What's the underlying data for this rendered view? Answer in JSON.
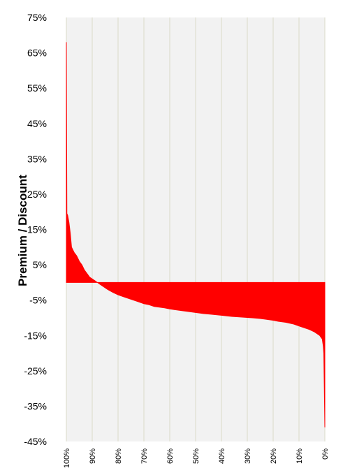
{
  "chart_data": {
    "type": "area",
    "title": "",
    "xlabel": "",
    "ylabel": "Premium / Discount",
    "x_reversed": true,
    "xlim": [
      100,
      0
    ],
    "ylim": [
      -45,
      75
    ],
    "grid": true,
    "legend": "none",
    "x_ticks": [
      "100%",
      "90%",
      "80%",
      "70%",
      "60%",
      "50%",
      "40%",
      "30%",
      "20%",
      "10%",
      "0%"
    ],
    "y_ticks": [
      "75%",
      "65%",
      "55%",
      "45%",
      "35%",
      "25%",
      "15%",
      "5%",
      "-5%",
      "-15%",
      "-25%",
      "-35%",
      "-45%"
    ],
    "series": [
      {
        "color": "#ff0000",
        "x": [
          100,
          99.8,
          99.5,
          99.0,
          98.5,
          98.0,
          97.0,
          96.0,
          95.0,
          94.0,
          93.0,
          92.0,
          91.0,
          90.0,
          89.0,
          88.0,
          87.0,
          86.0,
          85.0,
          84.0,
          82.0,
          80.0,
          78.0,
          76.0,
          74.0,
          72.0,
          70.0,
          68.0,
          66.0,
          64.0,
          62.0,
          60.0,
          58.0,
          55.0,
          52.0,
          50.0,
          47.0,
          44.0,
          40.0,
          36.0,
          32.0,
          28.0,
          25.0,
          22.0,
          20.0,
          18.0,
          15.0,
          12.0,
          10.0,
          8.0,
          6.0,
          4.0,
          3.0,
          2.0,
          1.5,
          1.0,
          0.8,
          0.6,
          0.4,
          0.2,
          0
        ],
        "values": [
          68,
          19.5,
          19,
          17,
          14,
          10,
          8.5,
          7.5,
          6,
          5,
          3.5,
          2.5,
          1.5,
          1,
          0.5,
          0,
          -0.5,
          -1,
          -1.5,
          -2,
          -2.8,
          -3.5,
          -4,
          -4.5,
          -5,
          -5.5,
          -6,
          -6.3,
          -6.8,
          -7,
          -7.2,
          -7.5,
          -7.7,
          -8,
          -8.3,
          -8.5,
          -8.8,
          -9,
          -9.3,
          -9.6,
          -9.8,
          -10,
          -10.2,
          -10.5,
          -10.7,
          -11,
          -11.3,
          -11.8,
          -12.3,
          -12.8,
          -13.3,
          -14,
          -14.5,
          -15,
          -15.5,
          -16,
          -17,
          -18,
          -20,
          -30,
          -41
        ]
      }
    ]
  }
}
